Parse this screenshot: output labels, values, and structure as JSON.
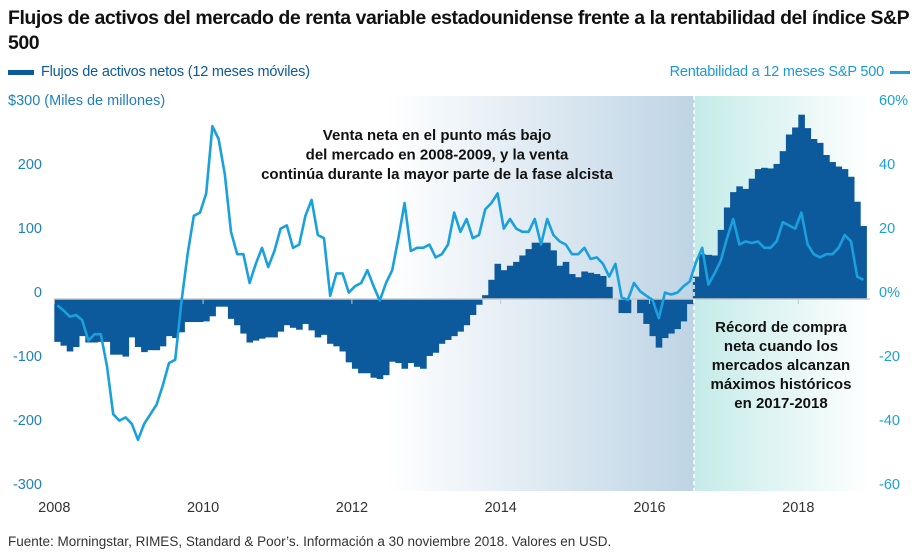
{
  "chart_data": {
    "type": "bar+line",
    "title": "Flujos de activos del mercado de renta variable estadounidense frente a la rentabilidad del índice S&P 500",
    "legend": [
      {
        "name": "Flujos de activos netos (12 meses móviles)",
        "color": "#0c5a9c",
        "placement": "top-left"
      },
      {
        "name": "Rentabilidad a 12 meses S&P 500",
        "color": "#1aa0dc",
        "placement": "top-right"
      }
    ],
    "x_start": "2008-01",
    "x_end": "2018-11",
    "x_frequency": "monthly",
    "x_ticks": [
      "2008",
      "2010",
      "2012",
      "2014",
      "2016",
      "2018"
    ],
    "y_left": {
      "label": "$300 (Miles de millones)",
      "ticks": [
        "200",
        "100",
        "0",
        "-100",
        "-200",
        "-300"
      ],
      "tick_values": [
        200,
        100,
        0,
        -100,
        -200,
        -300
      ],
      "range": [
        -300,
        300
      ]
    },
    "y_right": {
      "ticks": [
        "60%",
        "40",
        "20",
        "0%",
        "-20",
        "-40",
        "-60"
      ],
      "tick_values": [
        60,
        40,
        20,
        0,
        -20,
        -40,
        -60
      ],
      "range": [
        -60,
        60
      ]
    },
    "series": [
      {
        "name": "Flujos de activos netos (12 meses móviles)",
        "type": "bar",
        "axis": "left",
        "unit": "USD bn",
        "values": [
          -67,
          -73,
          -82,
          -75,
          -58,
          -68,
          -68,
          -67,
          -67,
          -87,
          -87,
          -90,
          -60,
          -75,
          -83,
          -80,
          -80,
          -74,
          -58,
          -61,
          -52,
          -36,
          -36,
          -36,
          -35,
          -27,
          -12,
          -12,
          -31,
          -41,
          -54,
          -68,
          -65,
          -62,
          -60,
          -60,
          -51,
          -41,
          -45,
          -48,
          -39,
          -49,
          -60,
          -56,
          -70,
          -74,
          -82,
          -99,
          -109,
          -116,
          -116,
          -123,
          -125,
          -119,
          -98,
          -100,
          -109,
          -100,
          -106,
          -109,
          -89,
          -84,
          -70,
          -64,
          -58,
          -51,
          -41,
          -25,
          -9,
          6,
          30,
          55,
          45,
          52,
          58,
          68,
          78,
          88,
          88,
          88,
          76,
          52,
          58,
          39,
          34,
          43,
          41,
          39,
          36,
          19,
          0,
          -22,
          -22,
          0,
          -22,
          -39,
          -58,
          -76,
          -61,
          -54,
          -47,
          -35,
          -8,
          35,
          70,
          69,
          68,
          108,
          143,
          167,
          176,
          172,
          188,
          203,
          205,
          204,
          211,
          231,
          257,
          268,
          288,
          267,
          250,
          244,
          225,
          214,
          207,
          203,
          191,
          152,
          114
        ]
      },
      {
        "name": "Rentabilidad a 12 meses S&P 500",
        "type": "line",
        "axis": "right",
        "unit": "%",
        "values": [
          -2,
          -3.6,
          -5.5,
          -5,
          -6.6,
          -13,
          -11,
          -11,
          -21,
          -36,
          -38,
          -37,
          -39,
          -44,
          -39,
          -36,
          -33,
          -27,
          -20,
          -19,
          -1,
          14,
          26,
          27,
          33,
          54,
          50,
          39,
          21,
          14,
          14,
          5,
          11,
          16,
          10,
          15,
          22,
          23,
          16,
          17,
          26,
          31,
          20,
          19,
          1,
          8,
          8,
          2,
          4,
          5,
          9,
          4,
          -0.5,
          5,
          9,
          19,
          30,
          15,
          16,
          16,
          17,
          13,
          14,
          17,
          27,
          21,
          25,
          19,
          20,
          28,
          30,
          33,
          22,
          25,
          22,
          21,
          21,
          25,
          17,
          25,
          20,
          18,
          17,
          14,
          14,
          16,
          12.5,
          13,
          11,
          7,
          11,
          0.5,
          -0.3,
          5,
          2.4,
          1,
          -0.3,
          -6,
          2,
          1.4,
          2,
          4,
          5.5,
          11.5,
          16,
          4.5,
          8,
          12,
          19,
          25,
          17,
          18,
          17.5,
          18,
          16,
          16,
          18,
          24,
          23,
          22,
          27,
          17,
          14,
          13,
          14,
          14,
          16,
          20,
          18,
          7,
          6
        ]
      }
    ],
    "annotations": [
      {
        "lines": [
          "Venta neta en el punto más bajo",
          "del mercado en 2008-2009, y la venta",
          "continúa durante la mayor parte de la fase alcista"
        ]
      },
      {
        "lines": [
          "Récord de compra",
          "neta cuando los",
          "mercados alcanzan",
          "máximos históricos",
          "en 2017-2018"
        ]
      }
    ],
    "shaded_regions": [
      {
        "from": "2012-06",
        "to": "2016-08",
        "color": "#c2d7e7"
      },
      {
        "from": "2016-08",
        "to": "2018-11",
        "color": "#c6ece9"
      }
    ]
  },
  "footer": "Fuente: Morningstar, RIMES, Standard & Poor’s. Información a 30 noviembre 2018. Valores en USD."
}
